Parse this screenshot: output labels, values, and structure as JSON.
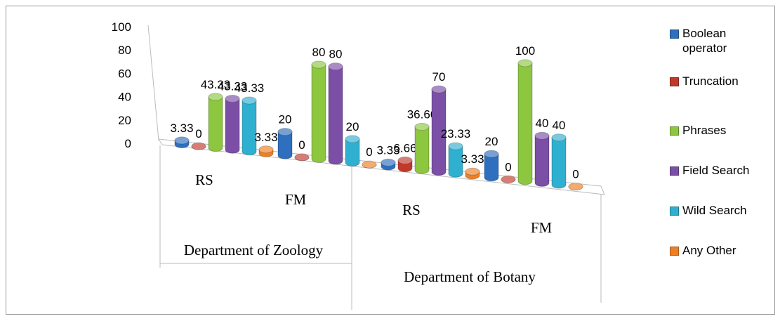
{
  "chart_data": {
    "type": "bar3d",
    "groups": [
      "Department of Zoology",
      "Department of Botany"
    ],
    "categories": [
      "RS",
      "FM",
      "RS",
      "FM"
    ],
    "series": [
      {
        "name": "Boolean operator",
        "color": "#2e6fbf",
        "values": [
          3.33,
          20,
          3.33,
          20
        ]
      },
      {
        "name": "Truncation",
        "color": "#c0392b",
        "values": [
          0,
          0,
          6.66,
          0
        ]
      },
      {
        "name": "Phrases",
        "color": "#8dc63f",
        "values": [
          43.33,
          80,
          36.66,
          100
        ]
      },
      {
        "name": "Field Search",
        "color": "#7b4fa6",
        "values": [
          43.33,
          80,
          70,
          40
        ]
      },
      {
        "name": "Wild Search",
        "color": "#2fb0d0",
        "values": [
          43.33,
          20,
          23.33,
          40
        ]
      },
      {
        "name": "Any Other",
        "color": "#f07f22",
        "values": [
          3.33,
          0,
          3.33,
          0
        ]
      }
    ],
    "ylim": [
      0,
      100
    ],
    "yticks": [
      0,
      20,
      40,
      60,
      80,
      100
    ],
    "legend": "right"
  }
}
